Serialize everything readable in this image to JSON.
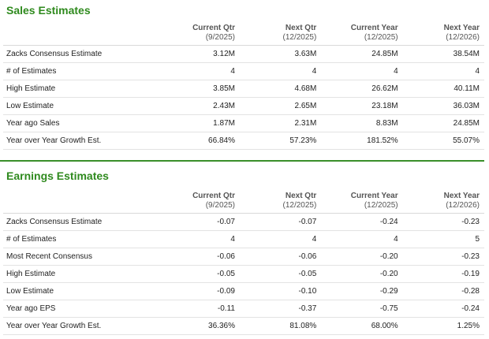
{
  "sales": {
    "title": "Sales Estimates",
    "columns": [
      {
        "main": "Current Qtr",
        "sub": "(9/2025)"
      },
      {
        "main": "Next Qtr",
        "sub": "(12/2025)"
      },
      {
        "main": "Current Year",
        "sub": "(12/2025)"
      },
      {
        "main": "Next Year",
        "sub": "(12/2026)"
      }
    ],
    "rows": [
      {
        "label": "Zacks Consensus Estimate",
        "values": [
          "3.12M",
          "3.63M",
          "24.85M",
          "38.54M"
        ]
      },
      {
        "label": "# of Estimates",
        "values": [
          "4",
          "4",
          "4",
          "4"
        ]
      },
      {
        "label": "High Estimate",
        "values": [
          "3.85M",
          "4.68M",
          "26.62M",
          "40.11M"
        ]
      },
      {
        "label": "Low Estimate",
        "values": [
          "2.43M",
          "2.65M",
          "23.18M",
          "36.03M"
        ]
      },
      {
        "label": "Year ago Sales",
        "values": [
          "1.87M",
          "2.31M",
          "8.83M",
          "24.85M"
        ]
      },
      {
        "label": "Year over Year Growth Est.",
        "values": [
          "66.84%",
          "57.23%",
          "181.52%",
          "55.07%"
        ]
      }
    ]
  },
  "earnings": {
    "title": "Earnings Estimates",
    "columns": [
      {
        "main": "Current Qtr",
        "sub": "(9/2025)"
      },
      {
        "main": "Next Qtr",
        "sub": "(12/2025)"
      },
      {
        "main": "Current Year",
        "sub": "(12/2025)"
      },
      {
        "main": "Next Year",
        "sub": "(12/2026)"
      }
    ],
    "rows": [
      {
        "label": "Zacks Consensus Estimate",
        "values": [
          "-0.07",
          "-0.07",
          "-0.24",
          "-0.23"
        ]
      },
      {
        "label": "# of Estimates",
        "values": [
          "4",
          "4",
          "4",
          "5"
        ]
      },
      {
        "label": "Most Recent Consensus",
        "values": [
          "-0.06",
          "-0.06",
          "-0.20",
          "-0.23"
        ]
      },
      {
        "label": "High Estimate",
        "values": [
          "-0.05",
          "-0.05",
          "-0.20",
          "-0.19"
        ]
      },
      {
        "label": "Low Estimate",
        "values": [
          "-0.09",
          "-0.10",
          "-0.29",
          "-0.28"
        ]
      },
      {
        "label": "Year ago EPS",
        "values": [
          "-0.11",
          "-0.37",
          "-0.75",
          "-0.24"
        ]
      },
      {
        "label": "Year over Year Growth Est.",
        "values": [
          "36.36%",
          "81.08%",
          "68.00%",
          "1.25%"
        ]
      }
    ]
  },
  "colors": {
    "title_green": "#2f8a1e",
    "divider_green": "#3a8f2a",
    "row_border": "#e3e3e3"
  }
}
